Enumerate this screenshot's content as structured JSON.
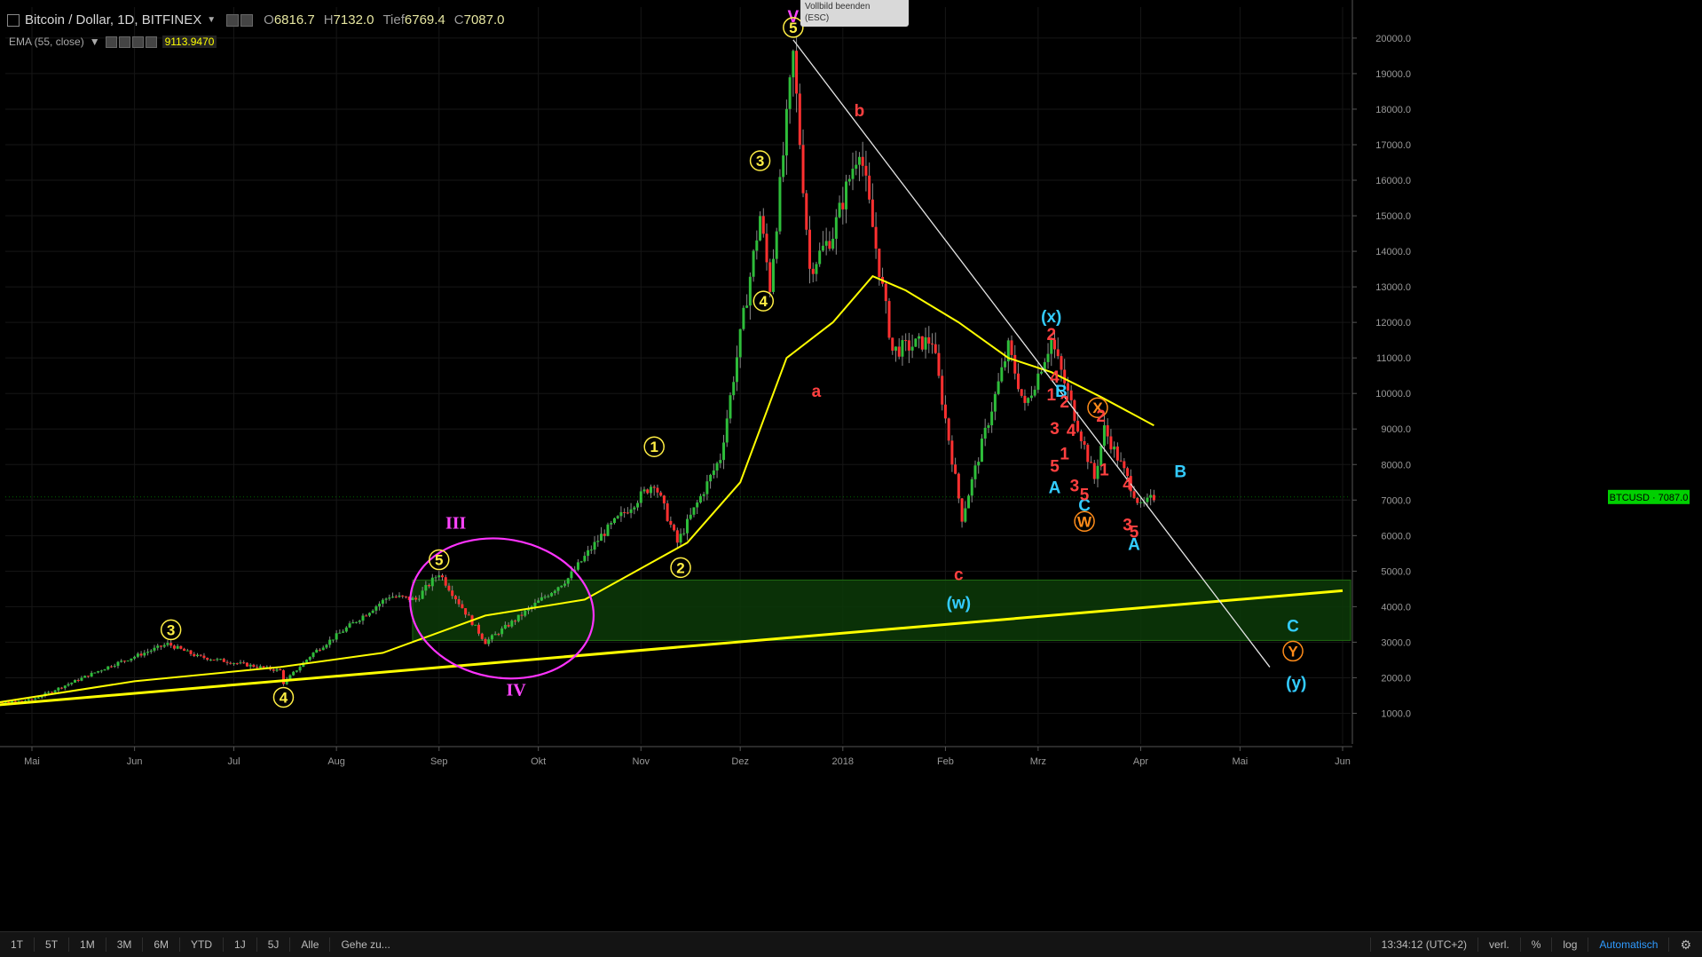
{
  "header": {
    "symbol": "Bitcoin / Dollar, 1D, BITFINEX",
    "ohlc": [
      {
        "key": "O",
        "value": "6816.7"
      },
      {
        "key": "H",
        "value": "7132.0"
      },
      {
        "key": "Tief",
        "value": "6769.4"
      },
      {
        "key": "C",
        "value": "7087.0"
      }
    ]
  },
  "indicator": {
    "label": "EMA (55, close)",
    "value": "9113.9470"
  },
  "fullscreen_tip": {
    "line1": "Vollbild beenden",
    "line2": "(ESC)"
  },
  "bottom_bar": {
    "timeframes": [
      "1T",
      "5T",
      "1M",
      "3M",
      "6M",
      "YTD",
      "1J",
      "5J",
      "Alle"
    ],
    "goto": "Gehe zu...",
    "clock": "13:34:12 (UTC+2)",
    "adjust": "verl.",
    "percent": "%",
    "log": "log",
    "auto": "Automatisch"
  },
  "colors": {
    "background": "#000000",
    "candle_up": "#2ebd3a",
    "candle_down": "#ff3030",
    "ema": "#ffff00",
    "support_line": "#ffff00",
    "price_tag": "#00d000",
    "zone": "#0c3a08"
  },
  "chart_data": {
    "type": "candlestick",
    "symbol": "BTCUSD",
    "last_price": "7087.0",
    "y_ticks": [
      "20000.0",
      "19000.0",
      "18000.0",
      "17000.0",
      "16000.0",
      "15000.0",
      "14000.0",
      "13000.0",
      "12000.0",
      "11000.0",
      "10000.0",
      "9000.0",
      "8000.0",
      "7000.0",
      "6000.0",
      "5000.0",
      "4000.0",
      "3000.0",
      "2000.0",
      "1000.0"
    ],
    "x_ticks": [
      {
        "label": "Mai",
        "date": "2017-05-01"
      },
      {
        "label": "Jun",
        "date": "2017-06-01"
      },
      {
        "label": "Jul",
        "date": "2017-07-01"
      },
      {
        "label": "Aug",
        "date": "2017-08-01"
      },
      {
        "label": "Sep",
        "date": "2017-09-01"
      },
      {
        "label": "Okt",
        "date": "2017-10-01"
      },
      {
        "label": "Nov",
        "date": "2017-11-01"
      },
      {
        "label": "Dez",
        "date": "2017-12-01"
      },
      {
        "label": "2018",
        "date": "2018-01-01"
      },
      {
        "label": "Feb",
        "date": "2018-02-01"
      },
      {
        "label": "Mrz",
        "date": "2018-03-01"
      },
      {
        "label": "Apr",
        "date": "2018-04-01"
      },
      {
        "label": "Mai",
        "date": "2018-05-01"
      },
      {
        "label": "Jun",
        "date": "2018-06-01"
      }
    ],
    "price_path": [
      [
        "2017-04-10",
        1180
      ],
      [
        "2017-05-01",
        1380
      ],
      [
        "2017-05-25",
        2350
      ],
      [
        "2017-06-11",
        2950
      ],
      [
        "2017-06-20",
        2600
      ],
      [
        "2017-07-15",
        2200
      ],
      [
        "2017-07-16",
        1850
      ],
      [
        "2017-07-25",
        2700
      ],
      [
        "2017-08-17",
        4300
      ],
      [
        "2017-08-25",
        4200
      ],
      [
        "2017-09-01",
        4950
      ],
      [
        "2017-09-15",
        3000
      ],
      [
        "2017-09-25",
        3700
      ],
      [
        "2017-10-10",
        4800
      ],
      [
        "2017-10-20",
        6000
      ],
      [
        "2017-11-05",
        7500
      ],
      [
        "2017-11-12",
        5800
      ],
      [
        "2017-11-25",
        8200
      ],
      [
        "2017-12-07",
        15000
      ],
      [
        "2017-12-10",
        13000
      ],
      [
        "2017-12-17",
        19500
      ],
      [
        "2017-12-22",
        13500
      ],
      [
        "2017-12-29",
        14500
      ],
      [
        "2018-01-06",
        17000
      ],
      [
        "2018-01-16",
        11200
      ],
      [
        "2018-01-28",
        11500
      ],
      [
        "2018-02-06",
        6500
      ],
      [
        "2018-02-20",
        11300
      ],
      [
        "2018-02-25",
        9600
      ],
      [
        "2018-03-05",
        11500
      ],
      [
        "2018-03-18",
        7600
      ],
      [
        "2018-03-21",
        9000
      ],
      [
        "2018-04-01",
        6800
      ],
      [
        "2018-04-05",
        7087
      ]
    ],
    "ema": {
      "label": "EMA (55, close)",
      "points": [
        [
          "2017-04-10",
          1150
        ],
        [
          "2017-06-01",
          1900
        ],
        [
          "2017-07-15",
          2300
        ],
        [
          "2017-08-15",
          2700
        ],
        [
          "2017-09-15",
          3750
        ],
        [
          "2017-10-15",
          4200
        ],
        [
          "2017-11-15",
          5800
        ],
        [
          "2017-12-01",
          7500
        ],
        [
          "2017-12-15",
          11000
        ],
        [
          "2017-12-29",
          12000
        ],
        [
          "2018-01-10",
          13300
        ],
        [
          "2018-01-20",
          12900
        ],
        [
          "2018-02-05",
          12000
        ],
        [
          "2018-02-20",
          11000
        ],
        [
          "2018-03-05",
          10600
        ],
        [
          "2018-03-20",
          9900
        ],
        [
          "2018-04-05",
          9100
        ]
      ]
    },
    "trend_lines": [
      {
        "name": "support",
        "from": [
          "2017-04-10",
          1150
        ],
        "to": [
          "2018-06-01",
          4450
        ]
      },
      {
        "name": "downtrend",
        "from": [
          "2017-12-17",
          19950
        ],
        "to": [
          "2018-05-10",
          2300
        ]
      }
    ],
    "zone": {
      "from": "2017-08-24",
      "to": "2018-06-01",
      "low": 3050,
      "high": 4750
    },
    "ellipse": {
      "center": [
        "2017-09-20",
        3950
      ],
      "label_top": "III",
      "label_bottom": "IV"
    },
    "wave_labels": [
      {
        "text": "V",
        "date": "2017-12-17",
        "price": 20600,
        "color": "#ff44ff"
      },
      {
        "text": "5",
        "date": "2017-12-17",
        "price": 20300,
        "color": "#ffee44",
        "circle": true
      },
      {
        "text": "3",
        "date": "2017-12-07",
        "price": 16550,
        "color": "#ffee44",
        "circle": true
      },
      {
        "text": "4",
        "date": "2017-12-08",
        "price": 12600,
        "color": "#ffee44",
        "circle": true
      },
      {
        "text": "1",
        "date": "2017-11-05",
        "price": 8500,
        "color": "#ffee44",
        "circle": true
      },
      {
        "text": "2",
        "date": "2017-11-13",
        "price": 5100,
        "color": "#ffee44",
        "circle": true
      },
      {
        "text": "3",
        "date": "2017-06-12",
        "price": 3350,
        "color": "#ffee44",
        "circle": true
      },
      {
        "text": "4",
        "date": "2017-07-16",
        "price": 1450,
        "color": "#ffee44",
        "circle": true
      },
      {
        "text": "5",
        "date": "2017-09-01",
        "price": 5320,
        "color": "#ffee44",
        "circle": true
      },
      {
        "text": "a",
        "date": "2017-12-24",
        "price": 10050,
        "color": "#ff4040"
      },
      {
        "text": "b",
        "date": "2018-01-06",
        "price": 17950,
        "color": "#ff4040"
      },
      {
        "text": "c",
        "date": "2018-02-05",
        "price": 4900,
        "color": "#ff4040"
      },
      {
        "text": "(w)",
        "date": "2018-02-05",
        "price": 4100,
        "color": "#33ccff"
      },
      {
        "text": "(x)",
        "date": "2018-03-05",
        "price": 12150,
        "color": "#33ccff"
      },
      {
        "text": "B",
        "date": "2018-03-08",
        "price": 10050,
        "color": "#33ccff"
      },
      {
        "text": "A",
        "date": "2018-03-06",
        "price": 7350,
        "color": "#33ccff"
      },
      {
        "text": "C",
        "date": "2018-03-15",
        "price": 6850,
        "color": "#33ccff"
      },
      {
        "text": "W",
        "date": "2018-03-15",
        "price": 6400,
        "color": "#ff8c1a",
        "circle": true
      },
      {
        "text": "X",
        "date": "2018-03-19",
        "price": 9600,
        "color": "#ff8c1a",
        "circle": true
      },
      {
        "text": "2",
        "date": "2018-03-05",
        "price": 11650,
        "color": "#ff4040"
      },
      {
        "text": "4",
        "date": "2018-03-06",
        "price": 10450,
        "color": "#ff4040"
      },
      {
        "text": "1",
        "date": "2018-03-05",
        "price": 9950,
        "color": "#ff4040"
      },
      {
        "text": "2",
        "date": "2018-03-09",
        "price": 9750,
        "color": "#ff4040"
      },
      {
        "text": "3",
        "date": "2018-03-06",
        "price": 9000,
        "color": "#ff4040"
      },
      {
        "text": "4",
        "date": "2018-03-11",
        "price": 8950,
        "color": "#ff4040"
      },
      {
        "text": "1",
        "date": "2018-03-09",
        "price": 8300,
        "color": "#ff4040"
      },
      {
        "text": "5",
        "date": "2018-03-06",
        "price": 7950,
        "color": "#ff4040"
      },
      {
        "text": "3",
        "date": "2018-03-12",
        "price": 7400,
        "color": "#ff4040"
      },
      {
        "text": "5",
        "date": "2018-03-15",
        "price": 7150,
        "color": "#ff4040"
      },
      {
        "text": "2",
        "date": "2018-03-20",
        "price": 9350,
        "color": "#ff4040"
      },
      {
        "text": "1",
        "date": "2018-03-21",
        "price": 7850,
        "color": "#ff4040"
      },
      {
        "text": "4",
        "date": "2018-03-28",
        "price": 7450,
        "color": "#ff4040"
      },
      {
        "text": "3",
        "date": "2018-03-28",
        "price": 6300,
        "color": "#ff4040"
      },
      {
        "text": "5",
        "date": "2018-03-30",
        "price": 6100,
        "color": "#ff4040"
      },
      {
        "text": "A",
        "date": "2018-03-30",
        "price": 5750,
        "color": "#33ccff"
      },
      {
        "text": "B",
        "date": "2018-04-13",
        "price": 7800,
        "color": "#33ccff"
      },
      {
        "text": "C",
        "date": "2018-05-17",
        "price": 3450,
        "color": "#33ccff"
      },
      {
        "text": "Y",
        "date": "2018-05-17",
        "price": 2750,
        "color": "#ff8c1a",
        "circle": true
      },
      {
        "text": "(y)",
        "date": "2018-05-18",
        "price": 1850,
        "color": "#33ccff"
      }
    ]
  }
}
